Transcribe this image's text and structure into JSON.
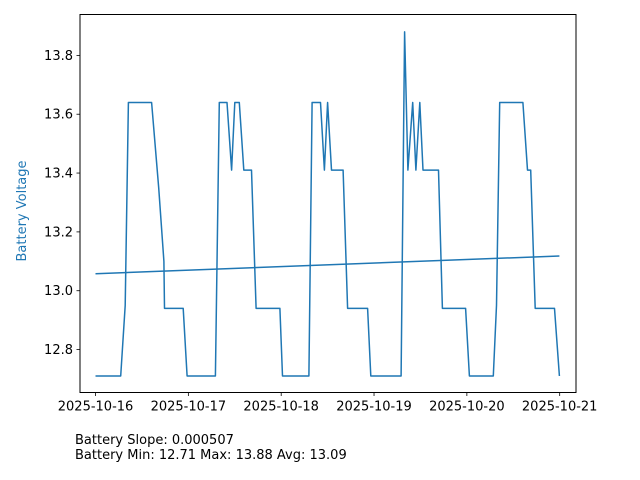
{
  "chart_data": {
    "type": "line",
    "xlabel": "",
    "ylabel": "Battery Voltage",
    "ylabel_color": "#1f77b4",
    "line_color": "#1f77b4",
    "grid": false,
    "xlim": [
      "2025-10-15T19:59",
      "2025-10-21T04:13"
    ],
    "ylim": [
      12.654,
      13.939
    ],
    "x_ticks": [
      "2025-10-16",
      "2025-10-17",
      "2025-10-18",
      "2025-10-19",
      "2025-10-20",
      "2025-10-21"
    ],
    "y_ticks": [
      12.8,
      13.0,
      13.2,
      13.4,
      13.6,
      13.8
    ],
    "series": [
      {
        "points": [
          [
            "2025-10-16T00:00",
            12.71
          ],
          [
            "2025-10-16T06:30",
            12.71
          ],
          [
            "2025-10-16T07:40",
            12.95
          ],
          [
            "2025-10-16T08:30",
            13.64
          ],
          [
            "2025-10-16T14:30",
            13.64
          ],
          [
            "2025-10-16T16:20",
            13.35
          ],
          [
            "2025-10-16T17:40",
            13.1
          ],
          [
            "2025-10-16T17:50",
            12.94
          ],
          [
            "2025-10-16T22:40",
            12.94
          ],
          [
            "2025-10-16T23:40",
            12.71
          ],
          [
            "2025-10-17T07:00",
            12.71
          ],
          [
            "2025-10-17T08:00",
            13.64
          ],
          [
            "2025-10-17T10:00",
            13.64
          ],
          [
            "2025-10-17T11:10",
            13.41
          ],
          [
            "2025-10-17T12:00",
            13.64
          ],
          [
            "2025-10-17T13:10",
            13.64
          ],
          [
            "2025-10-17T14:20",
            13.41
          ],
          [
            "2025-10-17T16:20",
            13.41
          ],
          [
            "2025-10-17T17:30",
            12.94
          ],
          [
            "2025-10-17T23:40",
            12.94
          ],
          [
            "2025-10-18T00:20",
            12.71
          ],
          [
            "2025-10-18T07:10",
            12.71
          ],
          [
            "2025-10-18T08:00",
            13.64
          ],
          [
            "2025-10-18T10:10",
            13.64
          ],
          [
            "2025-10-18T11:10",
            13.41
          ],
          [
            "2025-10-18T12:00",
            13.64
          ],
          [
            "2025-10-18T13:00",
            13.41
          ],
          [
            "2025-10-18T16:00",
            13.41
          ],
          [
            "2025-10-18T17:10",
            12.94
          ],
          [
            "2025-10-18T22:20",
            12.94
          ],
          [
            "2025-10-18T23:10",
            12.71
          ],
          [
            "2025-10-19T07:00",
            12.71
          ],
          [
            "2025-10-19T07:55",
            13.88
          ],
          [
            "2025-10-19T08:45",
            13.41
          ],
          [
            "2025-10-19T10:00",
            13.64
          ],
          [
            "2025-10-19T10:50",
            13.41
          ],
          [
            "2025-10-19T11:50",
            13.64
          ],
          [
            "2025-10-19T12:40",
            13.41
          ],
          [
            "2025-10-19T16:40",
            13.41
          ],
          [
            "2025-10-19T17:40",
            12.94
          ],
          [
            "2025-10-19T23:40",
            12.94
          ],
          [
            "2025-10-20T00:40",
            12.71
          ],
          [
            "2025-10-20T06:50",
            12.71
          ],
          [
            "2025-10-20T07:40",
            12.95
          ],
          [
            "2025-10-20T08:30",
            13.64
          ],
          [
            "2025-10-20T14:30",
            13.64
          ],
          [
            "2025-10-20T15:40",
            13.41
          ],
          [
            "2025-10-20T16:30",
            13.41
          ],
          [
            "2025-10-20T17:40",
            12.94
          ],
          [
            "2025-10-20T22:40",
            12.94
          ],
          [
            "2025-10-20T23:55",
            12.71
          ]
        ]
      },
      {
        "points": [
          [
            "2025-10-16T00:00",
            13.058
          ],
          [
            "2025-10-20T23:55",
            13.118
          ]
        ]
      }
    ]
  },
  "stats": {
    "slope_line": "Battery Slope: 0.000507",
    "range_line": "Battery Min: 12.71 Max: 13.88 Avg: 13.09"
  }
}
